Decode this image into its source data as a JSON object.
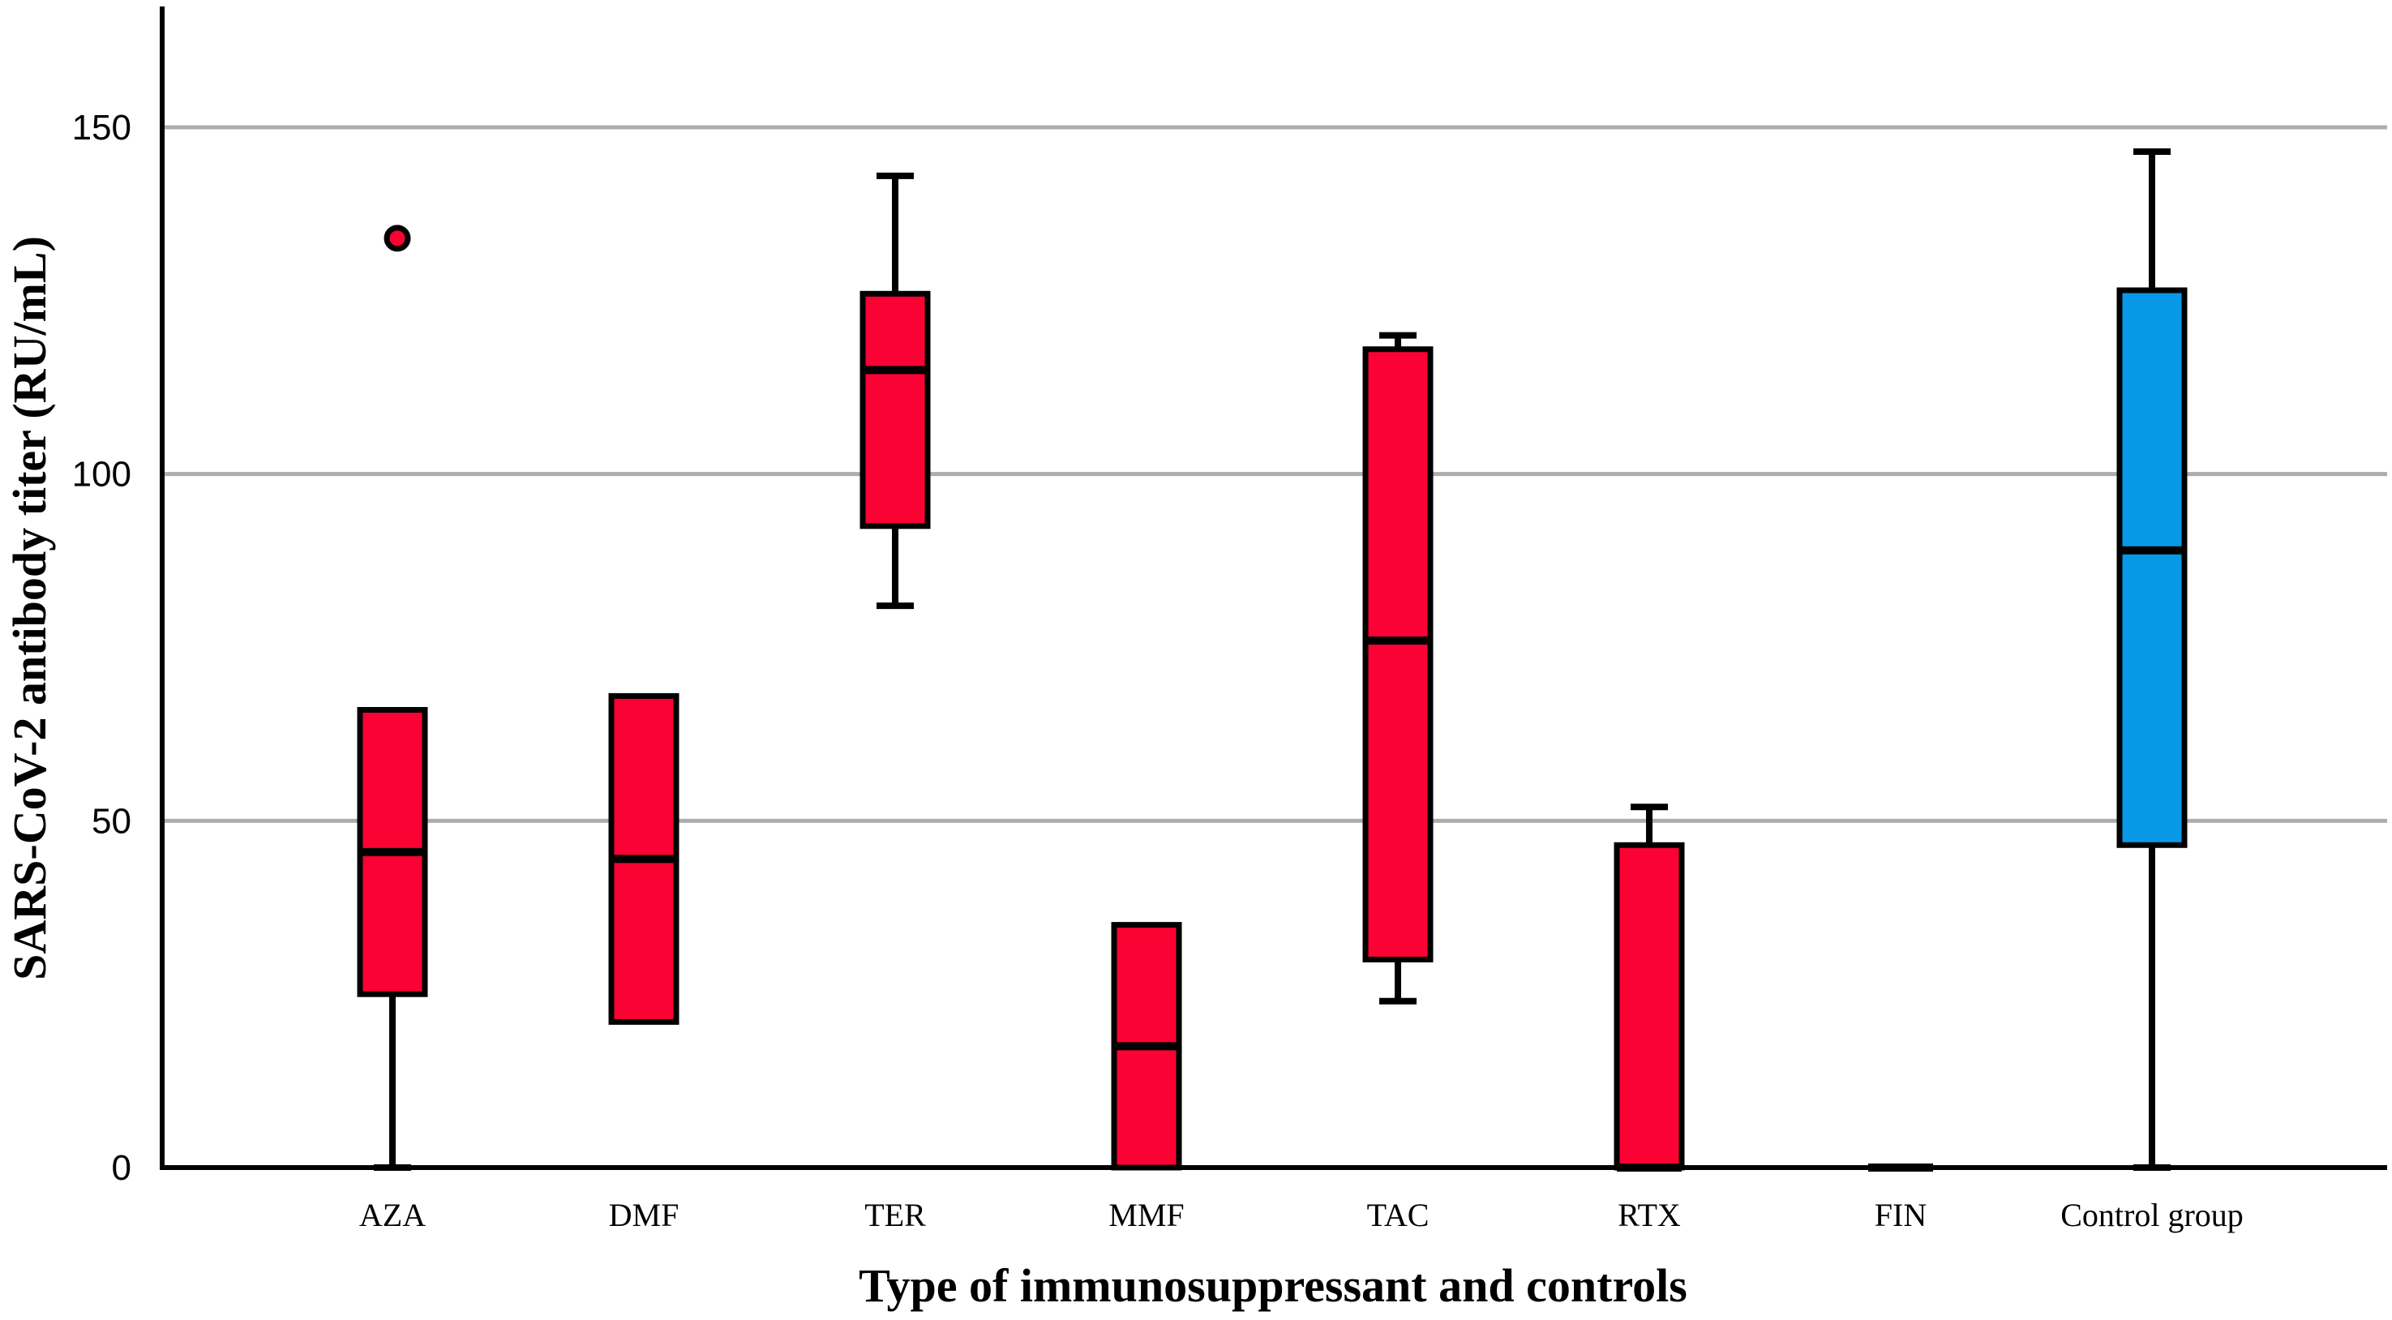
{
  "figure": {
    "background": "#ffffff"
  },
  "chart_data": {
    "type": "boxplot",
    "title": "",
    "xlabel": "Type of immunosuppressant and controls",
    "ylabel": "SARS-CoV-2 antibody titer (RU/mL)",
    "categories": [
      "AZA",
      "DMF",
      "TER",
      "MMF",
      "TAC",
      "RTX",
      "FIN",
      "Control group"
    ],
    "yticks": [
      0,
      50,
      100,
      150
    ],
    "ylim": [
      0,
      168
    ],
    "grid": "horizontal gray gridlines at 50, 100, 150; black baseline at 0; no top or right border",
    "legend": "none",
    "series": [
      {
        "category": "AZA",
        "whisker_low": 0,
        "q1": 25,
        "median": 45.5,
        "q3": 66,
        "whisker_high": 66,
        "outliers": [
          134
        ],
        "color": "#FA0233"
      },
      {
        "category": "DMF",
        "whisker_low": 21,
        "q1": 21,
        "median": 44.5,
        "q3": 68,
        "whisker_high": 68,
        "outliers": [],
        "color": "#FA0233"
      },
      {
        "category": "TER",
        "whisker_low": 81,
        "q1": 92.5,
        "median": 115,
        "q3": 126,
        "whisker_high": 143,
        "outliers": [],
        "color": "#FA0233"
      },
      {
        "category": "MMF",
        "whisker_low": 0,
        "q1": 0,
        "median": 17.5,
        "q3": 35,
        "whisker_high": 35,
        "outliers": [],
        "color": "#FA0233"
      },
      {
        "category": "TAC",
        "whisker_low": 24,
        "q1": 30,
        "median": 76,
        "q3": 118,
        "whisker_high": 120,
        "outliers": [],
        "color": "#FA0233"
      },
      {
        "category": "RTX",
        "whisker_low": 0,
        "q1": 0,
        "median": 0,
        "q3": 46.5,
        "whisker_high": 52,
        "outliers": [],
        "color": "#FA0233"
      },
      {
        "category": "FIN",
        "whisker_low": 0,
        "q1": 0,
        "median": 0,
        "q3": 0,
        "whisker_high": 0,
        "outliers": [],
        "color": "#FA0233"
      },
      {
        "category": "Control group",
        "whisker_low": 0,
        "q1": 46.5,
        "median": 89,
        "q3": 126.5,
        "whisker_high": 146.5,
        "outliers": [],
        "color": "#0899E6"
      }
    ],
    "colors": {
      "treatment_box": "#FA0233",
      "control_box": "#0899E6",
      "gridline": "#ADADAD",
      "axis": "#000000",
      "text": "#000000"
    }
  }
}
